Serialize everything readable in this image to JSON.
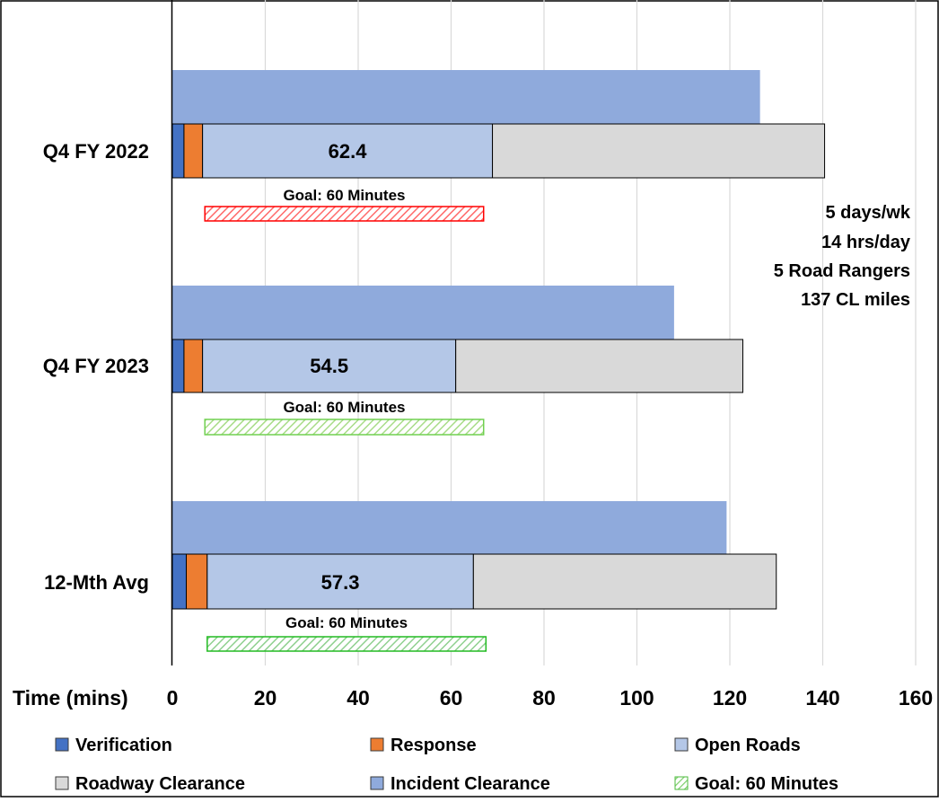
{
  "chart_data": {
    "type": "bar",
    "orientation": "horizontal",
    "stacked": true,
    "categories": [
      "Q4 FY 2022",
      "Q4 FY 2023",
      "12-Mth Avg"
    ],
    "xlabel": "Time (mins)",
    "xlim": [
      0,
      160
    ],
    "x_ticks": [
      0,
      20,
      40,
      60,
      80,
      100,
      120,
      140,
      160
    ],
    "grid": true,
    "legend_position": "bottom",
    "stacked_series": [
      {
        "name": "Verification",
        "color": "#4472c4",
        "values": [
          2.5,
          2.5,
          3.0
        ]
      },
      {
        "name": "Response",
        "color": "#ed7d31",
        "values": [
          4.0,
          4.0,
          4.5
        ]
      },
      {
        "name": "Open Roads",
        "color": "#b4c7e7",
        "values": [
          62.4,
          54.5,
          57.3
        ],
        "labels": [
          "62.4",
          "54.5",
          "57.3"
        ]
      },
      {
        "name": "Roadway Clearance",
        "color": "#d9d9d9",
        "values": [
          71.5,
          61.8,
          65.2
        ]
      }
    ],
    "incident_clearance": {
      "name": "Incident Clearance",
      "color": "#8faadc",
      "values": [
        126.5,
        108.0,
        119.3
      ]
    },
    "goal": {
      "name": "Goal: 60 Minutes",
      "label": "Goal: 60 Minutes",
      "start": [
        7.0,
        7.0,
        7.5
      ],
      "end": [
        67.0,
        67.0,
        67.5
      ],
      "colors": [
        "#ff0000",
        "#70d050",
        "#22bb22"
      ]
    },
    "annotation_lines": [
      "5 days/wk",
      "14 hrs/day",
      "5 Road Rangers",
      "137 CL miles"
    ]
  }
}
